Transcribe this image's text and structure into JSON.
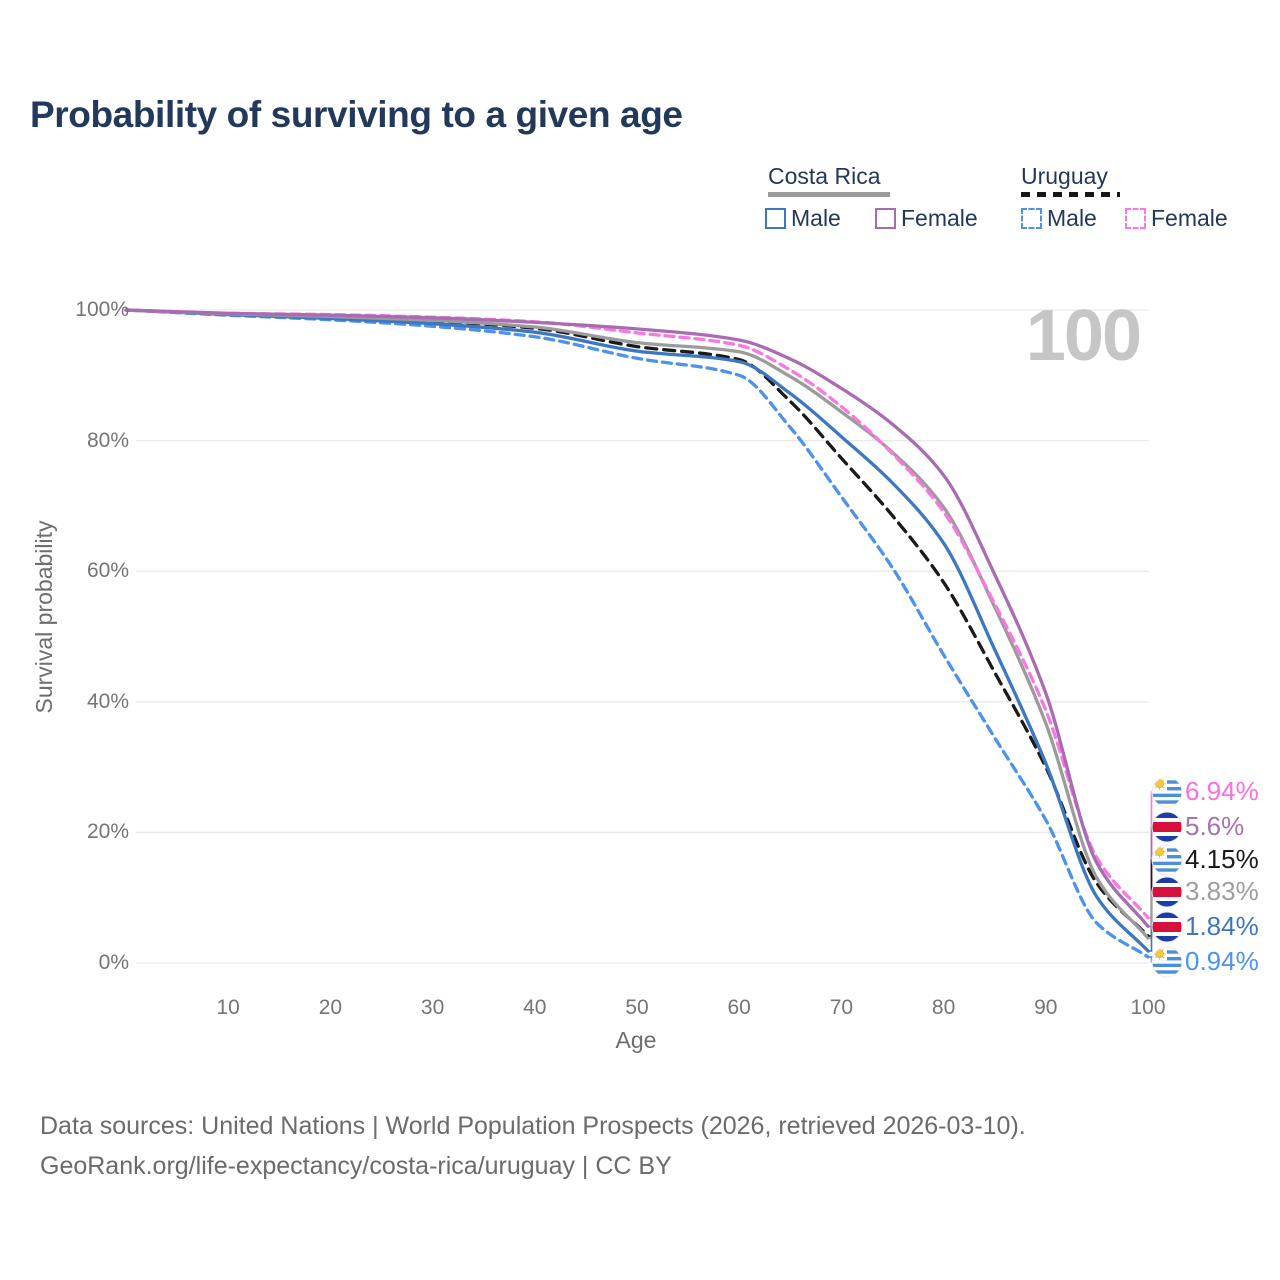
{
  "title": "Probability of surviving to a given age",
  "legend": {
    "groups": [
      {
        "label": "Costa Rica",
        "style": "solid",
        "color": "#9b9b9b"
      },
      {
        "label": "Uruguay",
        "style": "dashed",
        "color": "#161616"
      }
    ],
    "items": [
      {
        "label": "Male",
        "style": "solid",
        "color": "#3d77c2",
        "country": "Costa Rica"
      },
      {
        "label": "Female",
        "style": "solid",
        "color": "#a96cb3",
        "country": "Costa Rica"
      },
      {
        "label": "Male",
        "style": "dashed",
        "color": "#4b93ef",
        "country": "Uruguay"
      },
      {
        "label": "Female",
        "style": "dashed",
        "color": "#f878e2",
        "country": "Uruguay"
      }
    ]
  },
  "chart_data": {
    "type": "line",
    "title": "Probability of surviving to a given age",
    "xlabel": "Age",
    "ylabel": "Survival probability",
    "xlim": [
      0,
      100
    ],
    "ylim": [
      0,
      100
    ],
    "grid": "horizontal-only",
    "age_watermark": "100",
    "x_ticks": [
      "10",
      "20",
      "30",
      "40",
      "50",
      "60",
      "70",
      "80",
      "90",
      "100"
    ],
    "y_tick_values": [
      0,
      20,
      40,
      60,
      80,
      100
    ],
    "y_tick_labels": [
      "0%",
      "20%",
      "40%",
      "60%",
      "80%",
      "100%"
    ],
    "x": [
      0,
      10,
      20,
      30,
      40,
      50,
      60,
      65,
      70,
      75,
      80,
      85,
      90,
      95,
      100
    ],
    "series": [
      {
        "id": "uruguay-male",
        "name": "Uruguay Male",
        "country": "Uruguay",
        "sex": "male",
        "line_style": "dashed",
        "color": "#4b93ef",
        "label_color": "#4b93ef",
        "flag": "uruguay",
        "end_label": "0.94%",
        "values": [
          100,
          99.2,
          98.5,
          97.5,
          95.9,
          92.6,
          90.0,
          82.0,
          71.4,
          60.5,
          47.2,
          34.5,
          21.9,
          6.1,
          0.94
        ]
      },
      {
        "id": "uruguay-total",
        "name": "Uruguay",
        "country": "Uruguay",
        "sex": "both",
        "line_style": "dashed",
        "color": "#1a1a1a",
        "label_color": "#1a1a1a",
        "flag": "uruguay",
        "end_label": "4.15%",
        "values": [
          100,
          99.4,
          99.0,
          98.3,
          97.2,
          94.4,
          92.4,
          86.0,
          77.3,
          68.5,
          58.3,
          44.5,
          30.0,
          12.2,
          4.15
        ]
      },
      {
        "id": "costa-rica-male",
        "name": "Costa Rica Male",
        "country": "Costa Rica",
        "sex": "male",
        "line_style": "solid",
        "color": "#3d77c2",
        "label_color": "#3d77c2",
        "flag": "costa-rica",
        "end_label": "1.84%",
        "values": [
          100,
          99.3,
          98.7,
          97.9,
          96.6,
          93.7,
          92.1,
          87.2,
          80.6,
          73.5,
          64.3,
          48.0,
          30.6,
          10.1,
          1.84
        ]
      },
      {
        "id": "costa-rica-total",
        "name": "Costa Rica",
        "country": "Costa Rica",
        "sex": "both",
        "line_style": "solid",
        "color": "#9b9b9b",
        "label_color": "#9e9e9e",
        "flag": "costa-rica",
        "end_label": "3.83%",
        "values": [
          100,
          99.4,
          99.0,
          98.4,
          97.4,
          95.0,
          93.6,
          89.8,
          84.4,
          78.2,
          69.8,
          54.5,
          36.7,
          13.0,
          3.83
        ]
      },
      {
        "id": "uruguay-female",
        "name": "Uruguay Female",
        "country": "Uruguay",
        "sex": "female",
        "line_style": "dashed",
        "color": "#f878e2",
        "label_color": "#fb6fdf",
        "flag": "uruguay",
        "end_label": "6.94%",
        "values": [
          100,
          99.5,
          99.3,
          98.9,
          98.2,
          96.5,
          94.6,
          90.8,
          85.2,
          78.0,
          69.1,
          55.0,
          38.7,
          16.1,
          6.94
        ]
      },
      {
        "id": "costa-rica-female",
        "name": "Costa Rica Female",
        "country": "Costa Rica",
        "sex": "female",
        "line_style": "solid",
        "color": "#a96cb3",
        "label_color": "#a872b0",
        "flag": "costa-rica",
        "end_label": "5.6%",
        "values": [
          100,
          99.5,
          99.2,
          98.8,
          98.1,
          97.1,
          95.4,
          92.5,
          88.0,
          82.5,
          74.7,
          59.5,
          41.3,
          15.3,
          5.6
        ]
      }
    ]
  },
  "footer": {
    "line1": "Data sources: United Nations | World Population Prospects (2026, retrieved 2026-03-10).",
    "line2": "GeoRank.org/life-expectancy/costa-rica/uruguay | CC BY"
  }
}
